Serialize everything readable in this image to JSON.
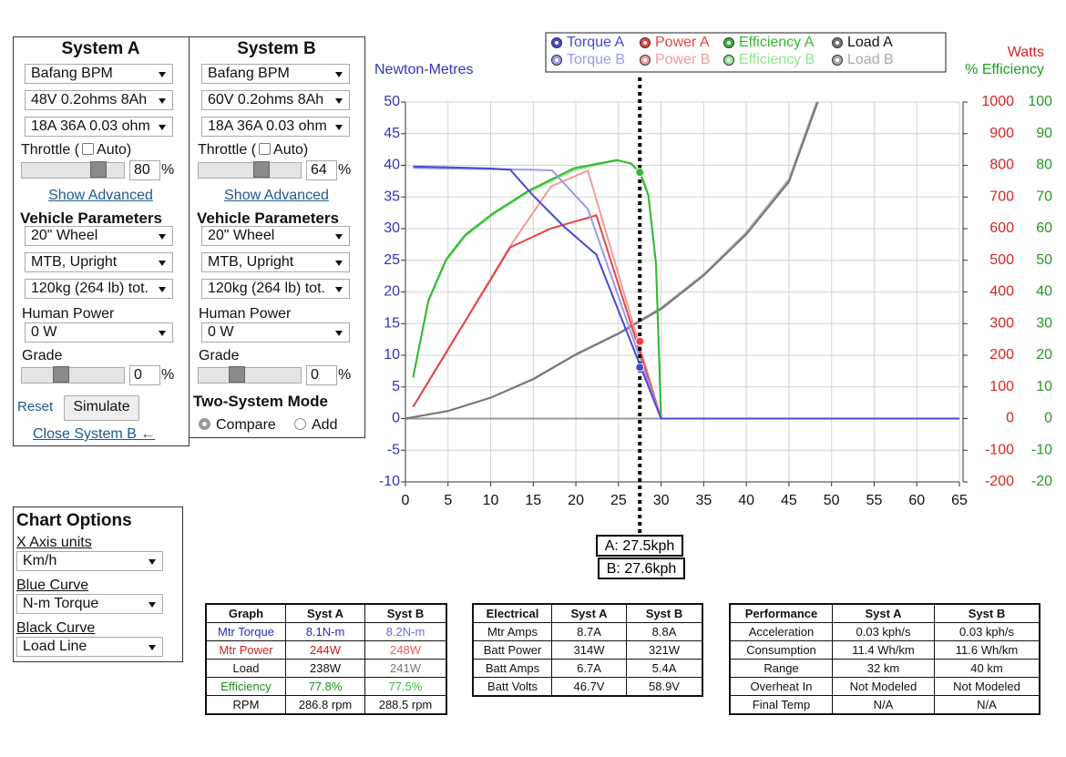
{
  "system_a": {
    "title": "System A",
    "motor": "Bafang BPM",
    "battery": "48V 0.2ohms 8Ah",
    "controller": "18A 36A 0.03 ohm",
    "throttle_label": "Throttle (",
    "auto_label": "Auto)",
    "throttle_value": "80",
    "throttle_unit": "%",
    "show_advanced": "Show Advanced",
    "vehicle_parameters": "Vehicle Parameters",
    "wheel": "20\"  Wheel",
    "frame": "MTB, Upright",
    "mass": "120kg (264 lb) tot.",
    "human_power_label": "Human Power",
    "human_power": "0 W",
    "grade_label": "Grade",
    "grade_value": "0",
    "grade_unit": "%",
    "reset": "Reset",
    "simulate": "Simulate",
    "close_b": "Close System B ←"
  },
  "system_b": {
    "title": "System B",
    "motor": "Bafang BPM",
    "battery": "60V 0.2ohms 8Ah",
    "controller": "18A 36A 0.03 ohm",
    "throttle_label": "Throttle (",
    "auto_label": "Auto)",
    "throttle_value": "64",
    "throttle_unit": "%",
    "show_advanced": "Show Advanced",
    "vehicle_parameters": "Vehicle Parameters",
    "wheel": "20\"  Wheel",
    "frame": "MTB, Upright",
    "mass": "120kg (264 lb) tot.",
    "human_power_label": "Human Power",
    "human_power": "0 W",
    "grade_label": "Grade",
    "grade_value": "0",
    "grade_unit": "%",
    "two_system_mode": "Two-System Mode",
    "compare": "Compare",
    "add": "Add"
  },
  "chart_options": {
    "title": "Chart Options",
    "x_axis_label": "X Axis units",
    "x_axis": "Km/h",
    "blue_label": "Blue Curve",
    "blue": "N-m Torque",
    "black_label": "Black Curve",
    "black": "Load Line"
  },
  "chart_data": {
    "type": "line",
    "y_label": "Newton-Metres",
    "y2_label": "Watts",
    "y3_label": "% Efficiency",
    "xlim": [
      0,
      65
    ],
    "xticks": [
      0,
      5,
      10,
      15,
      20,
      25,
      30,
      35,
      40,
      45,
      50,
      55,
      60,
      65
    ],
    "ylim": [
      -10,
      50
    ],
    "yticks": [
      -10,
      -5,
      0,
      5,
      10,
      15,
      20,
      25,
      30,
      35,
      40,
      45,
      50
    ],
    "y2lim": [
      -200,
      1000
    ],
    "y2ticks": [
      -200,
      -100,
      0,
      100,
      200,
      300,
      400,
      500,
      600,
      700,
      800,
      900,
      1000
    ],
    "y3lim": [
      -20,
      100
    ],
    "y3ticks": [
      -20,
      -10,
      0,
      10,
      20,
      30,
      40,
      50,
      60,
      70,
      80,
      90,
      100
    ],
    "grid": true,
    "cursor": {
      "x": 27.5,
      "labels": [
        "A: 27.5kph",
        "B: 27.6kph"
      ]
    },
    "series": [
      {
        "name": "Torque A",
        "color": "#4848d6",
        "axis": "y",
        "x": [
          0.9,
          5,
          10,
          12.3,
          15,
          18.7,
          22.4,
          30,
          65
        ],
        "values": [
          39.8,
          39.7,
          39.5,
          39.3,
          35.2,
          30.2,
          25.9,
          0,
          0
        ],
        "marker": 8.1
      },
      {
        "name": "Torque B",
        "color": "#9a9aee",
        "axis": "y",
        "x": [
          0.9,
          5,
          10,
          15,
          17.2,
          21.4,
          30,
          65
        ],
        "values": [
          39.6,
          39.5,
          39.4,
          39.3,
          39.2,
          33.1,
          0,
          0
        ]
      },
      {
        "name": "Power A",
        "color": "#e84444",
        "axis": "y2",
        "x": [
          0.9,
          12.3,
          17,
          22.4,
          30,
          65
        ],
        "values": [
          37,
          541,
          600,
          642,
          0,
          0
        ],
        "marker": 244
      },
      {
        "name": "Power B",
        "color": "#f29a9a",
        "axis": "y2",
        "x": [
          0.9,
          12.3,
          17.1,
          21.4,
          30,
          65
        ],
        "values": [
          37,
          545,
          734,
          783,
          0,
          0
        ]
      },
      {
        "name": "Efficiency A",
        "color": "#33b833",
        "axis": "y3",
        "x": [
          0.9,
          2.7,
          4.8,
          7,
          10.2,
          14.4,
          19.8,
          24.8,
          26.5,
          27.5,
          28.5,
          29.4,
          30,
          65
        ],
        "values": [
          13,
          37.4,
          50.4,
          58,
          64.7,
          71.9,
          79.1,
          81.7,
          80.5,
          77.8,
          70.5,
          48.9,
          0,
          0
        ],
        "marker": 77.8
      },
      {
        "name": "Efficiency B",
        "color": "#8ee88e",
        "axis": "y3",
        "x": [
          0.9,
          2.7,
          4.8,
          7,
          10.2,
          14.4,
          19.8,
          24.8,
          26.5,
          27.6,
          28.5,
          29.4,
          30,
          65
        ],
        "values": [
          13,
          37,
          50,
          57.5,
          64.3,
          71.5,
          78.5,
          81.5,
          80.6,
          77.5,
          71,
          49,
          0,
          0
        ]
      },
      {
        "name": "Load A",
        "color": "#777777",
        "axis": "y",
        "x": [
          0,
          5,
          10,
          15,
          20,
          25,
          30,
          35,
          40,
          45,
          50
        ],
        "values": [
          0,
          1.2,
          3.3,
          6.2,
          10.1,
          13.4,
          17.3,
          22.6,
          29.1,
          37.4,
          56
        ]
      },
      {
        "name": "Load B",
        "color": "#aaaaaa",
        "axis": "y",
        "x": [
          0,
          5,
          10,
          15,
          20,
          25,
          30,
          35,
          40,
          45,
          50
        ],
        "values": [
          0,
          1.2,
          3.3,
          6.3,
          10.2,
          13.5,
          17.5,
          22.8,
          29.4,
          37.8,
          56.6
        ]
      }
    ]
  },
  "tables": [
    {
      "headers": [
        "Graph",
        "Syst A",
        "Syst B"
      ],
      "rows": [
        [
          "Mtr Torque",
          "8.1N-m",
          "8.2N-m"
        ],
        [
          "Mtr Power",
          "244W",
          "248W"
        ],
        [
          "Load",
          "238W",
          "241W"
        ],
        [
          "Efficiency",
          "77.8%",
          "77.5%"
        ],
        [
          "RPM",
          "286.8 rpm",
          "288.5 rpm"
        ]
      ]
    },
    {
      "headers": [
        "Electrical",
        "Syst A",
        "Syst B"
      ],
      "rows": [
        [
          "Mtr Amps",
          "8.7A",
          "8.8A"
        ],
        [
          "Batt Power",
          "314W",
          "321W"
        ],
        [
          "Batt Amps",
          "6.7A",
          "5.4A"
        ],
        [
          "Batt Volts",
          "46.7V",
          "58.9V"
        ]
      ]
    },
    {
      "headers": [
        "Performance",
        "Syst A",
        "Syst B"
      ],
      "rows": [
        [
          "Acceleration",
          "0.03 kph/s",
          "0.03 kph/s"
        ],
        [
          "Consumption",
          "11.4 Wh/km",
          "11.6 Wh/km"
        ],
        [
          "Range",
          "32 km",
          "40 km"
        ],
        [
          "Overheat In",
          "Not Modeled",
          "Not Modeled"
        ],
        [
          "Final Temp",
          "N/A",
          "N/A"
        ]
      ]
    }
  ]
}
